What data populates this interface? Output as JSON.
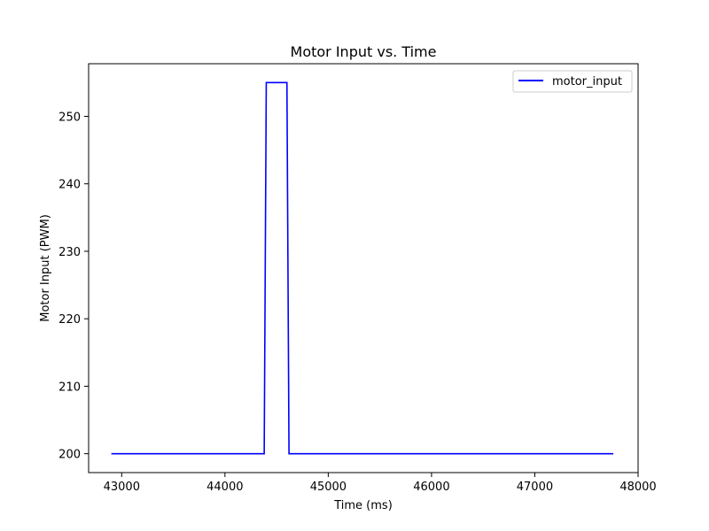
{
  "chart_data": {
    "type": "line",
    "title": "Motor Input vs. Time",
    "xlabel": "Time (ms)",
    "ylabel": "Motor Input (PWM)",
    "xlim": [
      42680,
      48000
    ],
    "ylim": [
      197.2,
      257.8
    ],
    "xticks": [
      43000,
      44000,
      45000,
      46000,
      47000,
      48000
    ],
    "xtick_labels": [
      "43000",
      "44000",
      "45000",
      "46000",
      "47000",
      "48000"
    ],
    "yticks": [
      200,
      210,
      220,
      230,
      240,
      250
    ],
    "ytick_labels": [
      "200",
      "210",
      "220",
      "230",
      "240",
      "250"
    ],
    "grid": false,
    "legend_position": "top-right",
    "series": [
      {
        "name": "motor_input",
        "color": "#0000ff",
        "x": [
          42900,
          44380,
          44400,
          44600,
          44620,
          47760
        ],
        "y": [
          200,
          200,
          255,
          255,
          200,
          200
        ]
      }
    ]
  }
}
